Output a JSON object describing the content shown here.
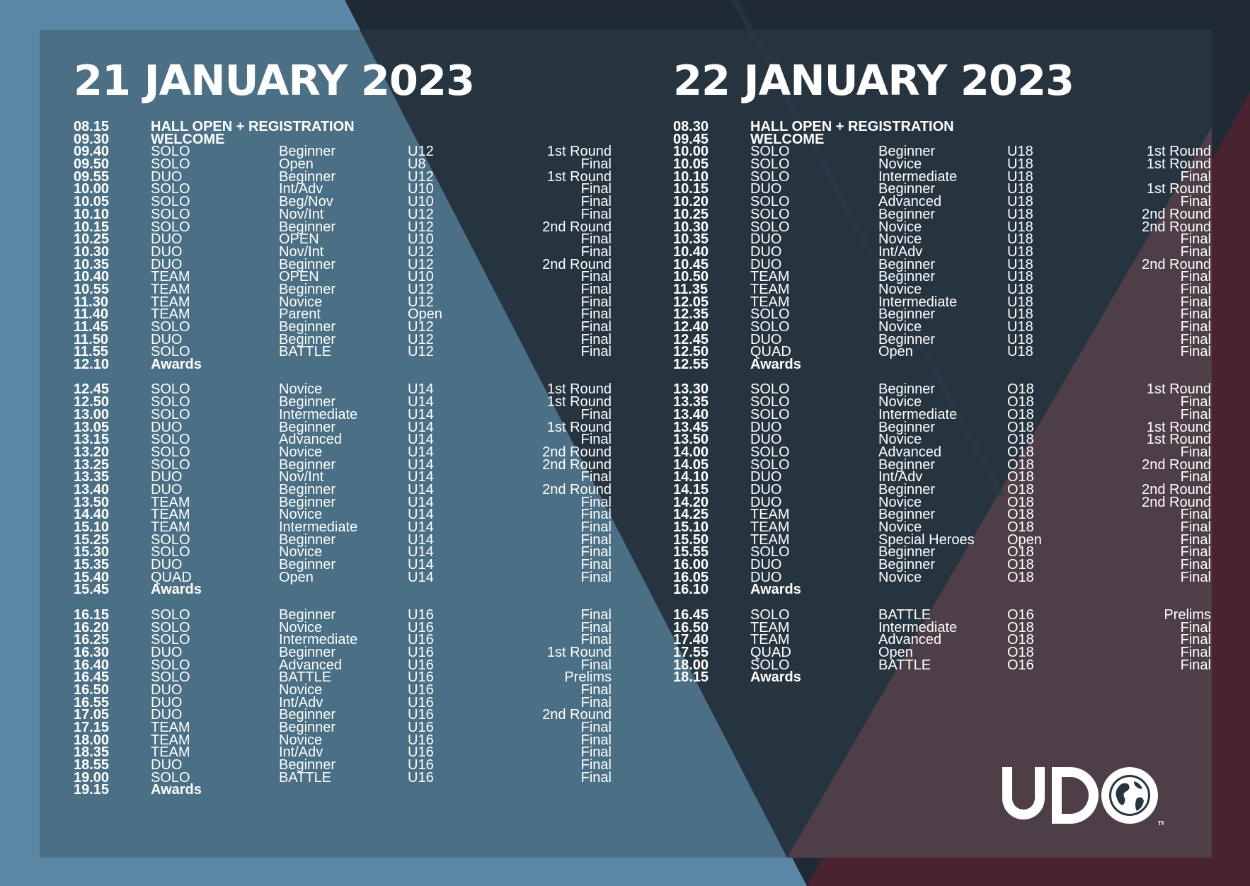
{
  "colors": {
    "light_blue": "#5a88a4",
    "mid_blue": "#4b7085",
    "dark_navy": "#1f2a35",
    "panel_navy": "#263440",
    "maroon": "#4a2330",
    "panel_maroon": "#4e3e48",
    "text": "#ffffff"
  },
  "logo": {
    "text": "UDO",
    "mark": "TM",
    "icon": "globe-icon"
  },
  "days": [
    {
      "title": "21 JANUARY 2023",
      "blocks": [
        [
          {
            "time": "08.15",
            "label": "HALL OPEN + REGISTRATION"
          },
          {
            "time": "09.30",
            "label": "WELCOME"
          },
          {
            "time": "09.40",
            "category": "SOLO",
            "level": "Beginner",
            "age": "U12",
            "round": "1st Round"
          },
          {
            "time": "09.50",
            "category": "SOLO",
            "level": "Open",
            "age": "U8",
            "round": "Final"
          },
          {
            "time": "09.55",
            "category": "DUO",
            "level": "Beginner",
            "age": "U12",
            "round": "1st Round"
          },
          {
            "time": "10.00",
            "category": "SOLO",
            "level": "Int/Adv",
            "age": "U10",
            "round": "Final"
          },
          {
            "time": "10.05",
            "category": "SOLO",
            "level": "Beg/Nov",
            "age": "U10",
            "round": "Final"
          },
          {
            "time": "10.10",
            "category": "SOLO",
            "level": "Nov/Int",
            "age": "U12",
            "round": "Final"
          },
          {
            "time": "10.15",
            "category": "SOLO",
            "level": "Beginner",
            "age": "U12",
            "round": "2nd Round"
          },
          {
            "time": "10.25",
            "category": "DUO",
            "level": "OPEN",
            "age": "U10",
            "round": "Final"
          },
          {
            "time": "10.30",
            "category": "DUO",
            "level": "Nov/Int",
            "age": "U12",
            "round": "Final"
          },
          {
            "time": "10.35",
            "category": "DUO",
            "level": "Beginner",
            "age": "U12",
            "round": "2nd Round"
          },
          {
            "time": "10.40",
            "category": "TEAM",
            "level": "OPEN",
            "age": "U10",
            "round": "Final"
          },
          {
            "time": "10.55",
            "category": "TEAM",
            "level": "Beginner",
            "age": "U12",
            "round": "Final"
          },
          {
            "time": "11.30",
            "category": "TEAM",
            "level": "Novice",
            "age": "U12",
            "round": "Final"
          },
          {
            "time": "11.40",
            "category": "TEAM",
            "level": "Parent",
            "age": "Open",
            "round": "Final"
          },
          {
            "time": "11.45",
            "category": "SOLO",
            "level": "Beginner",
            "age": "U12",
            "round": "Final"
          },
          {
            "time": "11.50",
            "category": "DUO",
            "level": "Beginner",
            "age": "U12",
            "round": "Final"
          },
          {
            "time": "11.55",
            "category": "SOLO",
            "level": "BATTLE",
            "age": "U12",
            "round": "Final"
          },
          {
            "time": "12.10",
            "label": "Awards"
          }
        ],
        [
          {
            "time": "12.45",
            "category": "SOLO",
            "level": "Novice",
            "age": "U14",
            "round": "1st Round"
          },
          {
            "time": "12.50",
            "category": "SOLO",
            "level": "Beginner",
            "age": "U14",
            "round": "1st Round"
          },
          {
            "time": "13.00",
            "category": "SOLO",
            "level": "Intermediate",
            "age": "U14",
            "round": "Final"
          },
          {
            "time": "13.05",
            "category": "DUO",
            "level": "Beginner",
            "age": "U14",
            "round": "1st Round"
          },
          {
            "time": "13.15",
            "category": "SOLO",
            "level": "Advanced",
            "age": "U14",
            "round": "Final"
          },
          {
            "time": "13.20",
            "category": "SOLO",
            "level": "Novice",
            "age": "U14",
            "round": "2nd Round"
          },
          {
            "time": "13.25",
            "category": "SOLO",
            "level": "Beginner",
            "age": "U14",
            "round": "2nd Round"
          },
          {
            "time": "13.35",
            "category": "DUO",
            "level": "Nov/Int",
            "age": "U14",
            "round": "Final"
          },
          {
            "time": "13.40",
            "category": "DUO",
            "level": "Beginner",
            "age": "U14",
            "round": "2nd Round"
          },
          {
            "time": "13.50",
            "category": "TEAM",
            "level": "Beginner",
            "age": "U14",
            "round": "Final"
          },
          {
            "time": "14.40",
            "category": "TEAM",
            "level": "Novice",
            "age": "U14",
            "round": "Final"
          },
          {
            "time": "15.10",
            "category": "TEAM",
            "level": "Intermediate",
            "age": "U14",
            "round": "Final"
          },
          {
            "time": "15.25",
            "category": "SOLO",
            "level": "Beginner",
            "age": "U14",
            "round": "Final"
          },
          {
            "time": "15.30",
            "category": "SOLO",
            "level": "Novice",
            "age": "U14",
            "round": "Final"
          },
          {
            "time": "15.35",
            "category": "DUO",
            "level": "Beginner",
            "age": "U14",
            "round": "Final"
          },
          {
            "time": "15.40",
            "category": "QUAD",
            "level": "Open",
            "age": "U14",
            "round": "Final"
          },
          {
            "time": "15.45",
            "label": "Awards"
          }
        ],
        [
          {
            "time": "16.15",
            "category": "SOLO",
            "level": "Beginner",
            "age": "U16",
            "round": "Final"
          },
          {
            "time": "16.20",
            "category": "SOLO",
            "level": "Novice",
            "age": "U16",
            "round": "Final"
          },
          {
            "time": "16.25",
            "category": "SOLO",
            "level": "Intermediate",
            "age": "U16",
            "round": "Final"
          },
          {
            "time": "16.30",
            "category": "DUO",
            "level": "Beginner",
            "age": "U16",
            "round": "1st Round"
          },
          {
            "time": "16.40",
            "category": "SOLO",
            "level": "Advanced",
            "age": "U16",
            "round": "Final"
          },
          {
            "time": "16.45",
            "category": "SOLO",
            "level": "BATTLE",
            "age": "U16",
            "round": "Prelims"
          },
          {
            "time": "16.50",
            "category": "DUO",
            "level": "Novice",
            "age": "U16",
            "round": "Final"
          },
          {
            "time": "16.55",
            "category": "DUO",
            "level": "Int/Adv",
            "age": "U16",
            "round": "Final"
          },
          {
            "time": "17.05",
            "category": "DUO",
            "level": "Beginner",
            "age": "U16",
            "round": "2nd Round"
          },
          {
            "time": "17.15",
            "category": "TEAM",
            "level": "Beginner",
            "age": "U16",
            "round": "Final"
          },
          {
            "time": "18.00",
            "category": "TEAM",
            "level": "Novice",
            "age": "U16",
            "round": "Final"
          },
          {
            "time": "18.35",
            "category": "TEAM",
            "level": "Int/Adv",
            "age": "U16",
            "round": "Final"
          },
          {
            "time": "18.55",
            "category": "DUO",
            "level": "Beginner",
            "age": "U16",
            "round": "Final"
          },
          {
            "time": "19.00",
            "category": "SOLO",
            "level": "BATTLE",
            "age": "U16",
            "round": "Final"
          },
          {
            "time": "19.15",
            "label": "Awards"
          }
        ]
      ]
    },
    {
      "title": "22 JANUARY 2023",
      "blocks": [
        [
          {
            "time": "08.30",
            "label": "HALL OPEN + REGISTRATION"
          },
          {
            "time": "09.45",
            "label": "WELCOME"
          },
          {
            "time": "10.00",
            "category": "SOLO",
            "level": "Beginner",
            "age": "U18",
            "round": "1st Round"
          },
          {
            "time": "10.05",
            "category": "SOLO",
            "level": "Novice",
            "age": "U18",
            "round": "1st Round"
          },
          {
            "time": "10.10",
            "category": "SOLO",
            "level": "Intermediate",
            "age": "U18",
            "round": "Final"
          },
          {
            "time": "10.15",
            "category": "DUO",
            "level": "Beginner",
            "age": "U18",
            "round": "1st Round"
          },
          {
            "time": "10.20",
            "category": "SOLO",
            "level": "Advanced",
            "age": "U18",
            "round": "Final"
          },
          {
            "time": "10.25",
            "category": "SOLO",
            "level": "Beginner",
            "age": "U18",
            "round": "2nd Round"
          },
          {
            "time": "10.30",
            "category": "SOLO",
            "level": "Novice",
            "age": "U18",
            "round": "2nd Round"
          },
          {
            "time": "10.35",
            "category": "DUO",
            "level": "Novice",
            "age": "U18",
            "round": "Final"
          },
          {
            "time": "10.40",
            "category": "DUO",
            "level": "Int/Adv",
            "age": "U18",
            "round": "Final"
          },
          {
            "time": "10.45",
            "category": "DUO",
            "level": "Beginner",
            "age": "U18",
            "round": "2nd Round"
          },
          {
            "time": "10.50",
            "category": "TEAM",
            "level": "Beginner",
            "age": "U18",
            "round": "Final"
          },
          {
            "time": "11.35",
            "category": "TEAM",
            "level": "Novice",
            "age": "U18",
            "round": "Final"
          },
          {
            "time": "12.05",
            "category": "TEAM",
            "level": "Intermediate",
            "age": "U18",
            "round": "Final"
          },
          {
            "time": "12.35",
            "category": "SOLO",
            "level": "Beginner",
            "age": "U18",
            "round": "Final"
          },
          {
            "time": "12.40",
            "category": "SOLO",
            "level": "Novice",
            "age": "U18",
            "round": "Final"
          },
          {
            "time": "12.45",
            "category": "DUO",
            "level": "Beginner",
            "age": "U18",
            "round": "Final"
          },
          {
            "time": "12.50",
            "category": "QUAD",
            "level": "Open",
            "age": "U18",
            "round": "Final"
          },
          {
            "time": "12.55",
            "label": "Awards"
          }
        ],
        [
          {
            "time": "13.30",
            "category": "SOLO",
            "level": "Beginner",
            "age": "O18",
            "round": "1st Round"
          },
          {
            "time": "13.35",
            "category": "SOLO",
            "level": "Novice",
            "age": "O18",
            "round": "Final"
          },
          {
            "time": "13.40",
            "category": "SOLO",
            "level": "Intermediate",
            "age": "O18",
            "round": "Final"
          },
          {
            "time": "13.45",
            "category": "DUO",
            "level": "Beginner",
            "age": "O18",
            "round": "1st Round"
          },
          {
            "time": "13.50",
            "category": "DUO",
            "level": "Novice",
            "age": "O18",
            "round": "1st Round"
          },
          {
            "time": "14.00",
            "category": "SOLO",
            "level": "Advanced",
            "age": "O18",
            "round": "Final"
          },
          {
            "time": "14.05",
            "category": "SOLO",
            "level": "Beginner",
            "age": "O18",
            "round": "2nd Round"
          },
          {
            "time": "14.10",
            "category": "DUO",
            "level": "Int/Adv",
            "age": "O18",
            "round": "Final"
          },
          {
            "time": "14.15",
            "category": "DUO",
            "level": "Beginner",
            "age": "O18",
            "round": "2nd Round"
          },
          {
            "time": "14.20",
            "category": "DUO",
            "level": "Novice",
            "age": "O18",
            "round": "2nd Round"
          },
          {
            "time": "14.25",
            "category": "TEAM",
            "level": "Beginner",
            "age": "O18",
            "round": "Final"
          },
          {
            "time": "15.10",
            "category": "TEAM",
            "level": "Novice",
            "age": "O18",
            "round": "Final"
          },
          {
            "time": "15.50",
            "category": "TEAM",
            "level": "Special Heroes",
            "age": "Open",
            "round": "Final"
          },
          {
            "time": "15.55",
            "category": "SOLO",
            "level": "Beginner",
            "age": "O18",
            "round": "Final"
          },
          {
            "time": "16.00",
            "category": "DUO",
            "level": "Beginner",
            "age": "O18",
            "round": "Final"
          },
          {
            "time": "16.05",
            "category": "DUO",
            "level": "Novice",
            "age": "O18",
            "round": "Final"
          },
          {
            "time": "16.10",
            "label": "Awards"
          }
        ],
        [
          {
            "time": "16.45",
            "category": "SOLO",
            "level": "BATTLE",
            "age": "O16",
            "round": "Prelims"
          },
          {
            "time": "16.50",
            "category": "TEAM",
            "level": "Intermediate",
            "age": "O18",
            "round": "Final"
          },
          {
            "time": "17.40",
            "category": "TEAM",
            "level": "Advanced",
            "age": "O18",
            "round": "Final"
          },
          {
            "time": "17.55",
            "category": "QUAD",
            "level": "Open",
            "age": "O18",
            "round": "Final"
          },
          {
            "time": "18.00",
            "category": "SOLO",
            "level": "BATTLE",
            "age": "O16",
            "round": "Final"
          },
          {
            "time": "18.15",
            "label": "Awards"
          }
        ]
      ]
    }
  ]
}
